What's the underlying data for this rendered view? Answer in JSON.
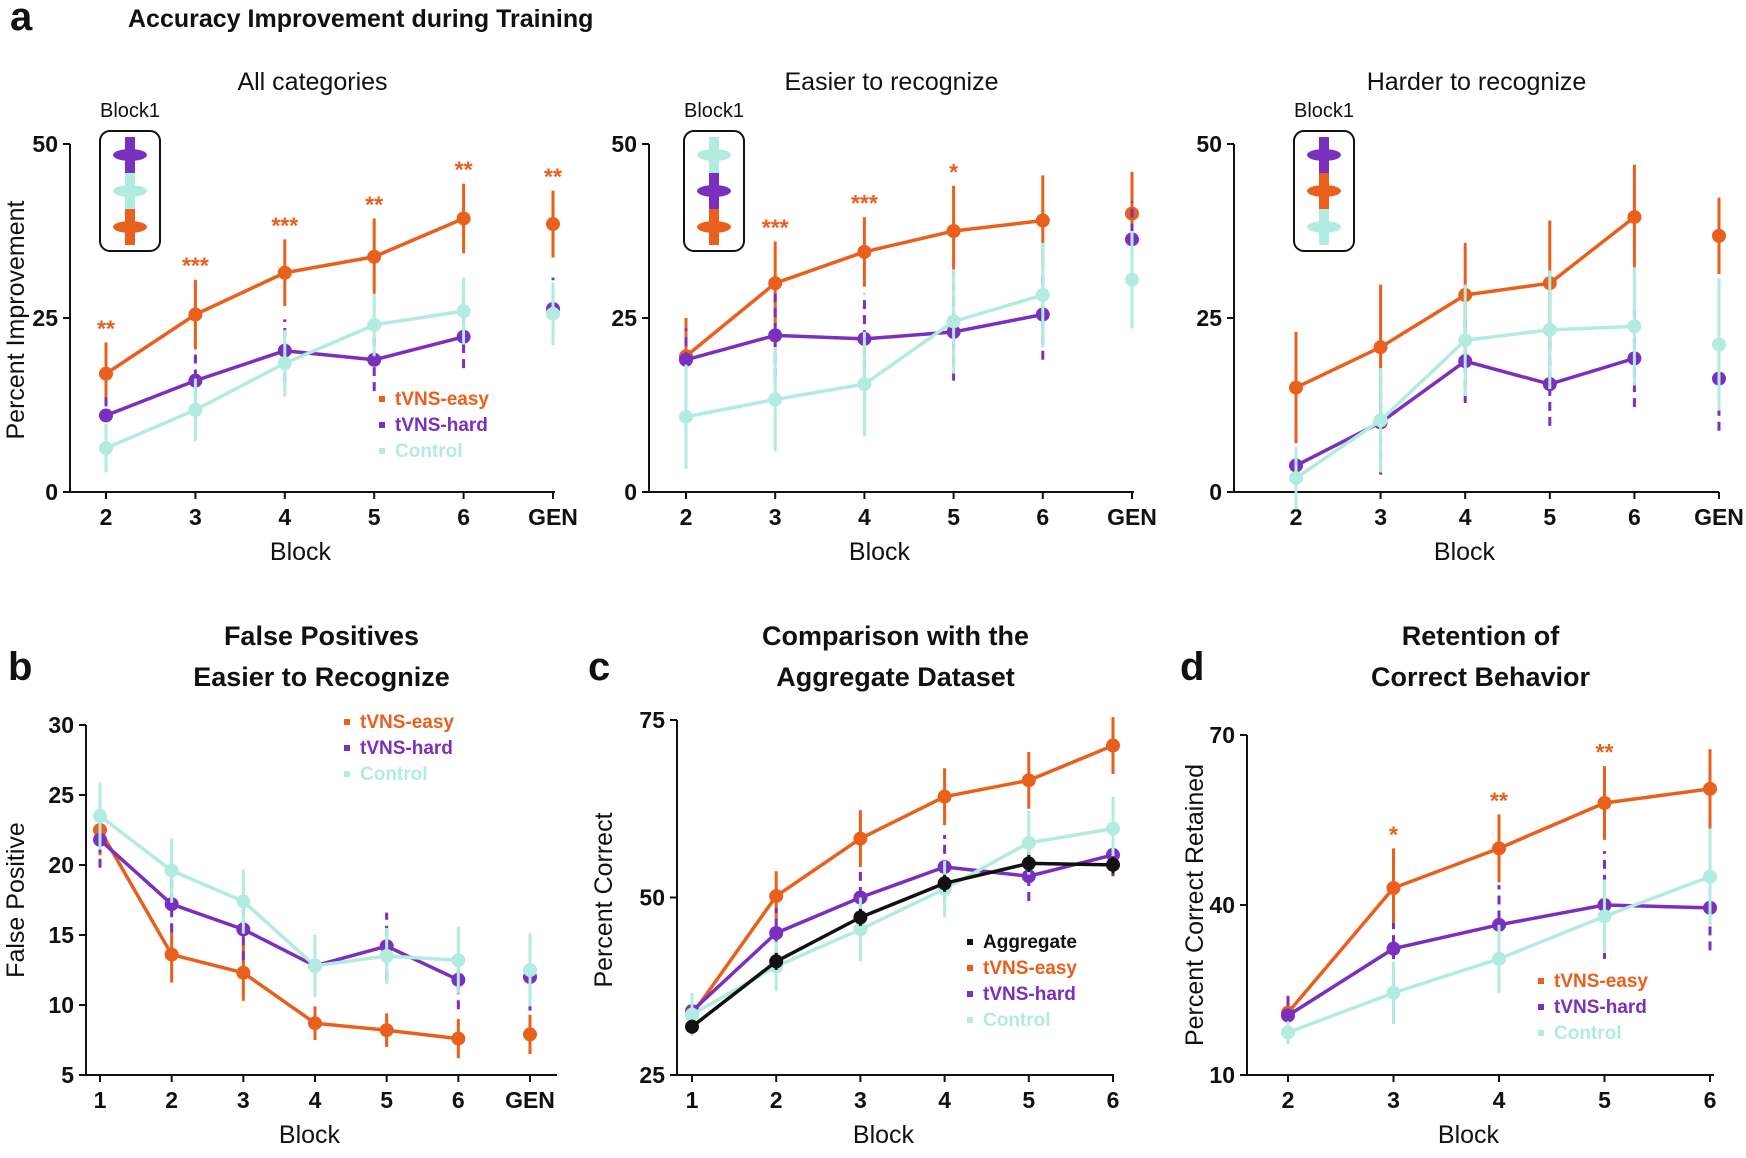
{
  "figure": {
    "section_a_letter": "a",
    "section_a_title": "Accuracy Improvement during Training",
    "section_b_letter": "b",
    "section_c_letter": "c",
    "section_d_letter": "d"
  },
  "colors": {
    "tvns_easy": "#E8601C",
    "tvns_hard": "#7B2FBE",
    "control": "#B2EBDF",
    "aggregate": "#111111"
  },
  "chart_data": [
    {
      "id": "a1",
      "type": "line",
      "title": "All categories",
      "xlabel": "Block",
      "ylabel": "Percent Improvement",
      "categories": [
        "2",
        "3",
        "4",
        "5",
        "6",
        "GEN"
      ],
      "yticks": [
        0,
        25,
        50
      ],
      "ylim": [
        0,
        50
      ],
      "inset_label": "Block1",
      "legend": [
        "tVNS-easy",
        "tVNS-hard",
        "Control"
      ],
      "series": [
        {
          "name": "tVNS-easy",
          "color_key": "tvns_easy",
          "values": [
            17,
            25.5,
            31.5,
            33.8,
            39.3,
            38.5
          ],
          "err": [
            4.5,
            5,
            4.8,
            5.5,
            5,
            4.8
          ]
        },
        {
          "name": "tVNS-hard",
          "color_key": "tvns_hard",
          "values": [
            11,
            16,
            20.3,
            19,
            22.3,
            26.3
          ],
          "err": [
            3,
            4,
            4.5,
            4.5,
            4.5,
            4.5
          ]
        },
        {
          "name": "Control",
          "color_key": "control",
          "values": [
            6.3,
            11.8,
            18.5,
            24,
            26,
            25.6
          ],
          "err": [
            3.5,
            4.5,
            4.8,
            4.5,
            4.8,
            4.5
          ]
        }
      ],
      "stars": [
        "**",
        "***",
        "***",
        "**",
        "**",
        "**"
      ]
    },
    {
      "id": "a2",
      "type": "line",
      "title": "Easier to recognize",
      "xlabel": "Block",
      "ylabel": "",
      "categories": [
        "2",
        "3",
        "4",
        "5",
        "6",
        "GEN"
      ],
      "yticks": [
        0,
        25,
        50
      ],
      "ylim": [
        0,
        50
      ],
      "inset_label": "Block1",
      "legend": [],
      "series": [
        {
          "name": "tVNS-easy",
          "color_key": "tvns_easy",
          "values": [
            19.5,
            30,
            34.5,
            37.5,
            39,
            40
          ],
          "err": [
            5.5,
            6,
            5,
            6.5,
            6.5,
            6
          ]
        },
        {
          "name": "tVNS-hard",
          "color_key": "tvns_hard",
          "values": [
            19,
            22.5,
            22,
            23,
            25.5,
            36.3
          ],
          "err": [
            4.5,
            6,
            6.5,
            7,
            6.5,
            5.5
          ]
        },
        {
          "name": "Control",
          "color_key": "control",
          "values": [
            10.8,
            13.3,
            15.5,
            24.5,
            28.3,
            30.5
          ],
          "err": [
            7.5,
            7.5,
            7.5,
            7.5,
            7.5,
            7
          ]
        }
      ],
      "stars": [
        "",
        "***",
        "***",
        "*",
        "",
        ""
      ]
    },
    {
      "id": "a3",
      "type": "line",
      "title": "Harder to recognize",
      "xlabel": "Block",
      "ylabel": "",
      "categories": [
        "2",
        "3",
        "4",
        "5",
        "6",
        "GEN"
      ],
      "yticks": [
        0,
        25,
        50
      ],
      "ylim": [
        0,
        50
      ],
      "inset_label": "Block1",
      "legend": [],
      "series": [
        {
          "name": "tVNS-easy",
          "color_key": "tvns_easy",
          "values": [
            15,
            20.8,
            28.3,
            30,
            39.5,
            36.8
          ],
          "err": [
            8,
            9,
            7.5,
            9,
            7.5,
            5.5
          ]
        },
        {
          "name": "tVNS-hard",
          "color_key": "tvns_hard",
          "values": [
            3.8,
            10,
            18.8,
            15.5,
            19.2,
            16.3
          ],
          "err": [
            3,
            7.5,
            6,
            6,
            7,
            7.5
          ]
        },
        {
          "name": "Control",
          "color_key": "control",
          "values": [
            2,
            10.3,
            21.8,
            23.3,
            23.8,
            21.2
          ],
          "err": [
            4.5,
            7.5,
            8,
            8.5,
            8.5,
            9.5
          ]
        }
      ],
      "stars": [
        "",
        "",
        "",
        "",
        "",
        ""
      ]
    },
    {
      "id": "b",
      "type": "line",
      "title_line1": "False Positives",
      "title_line2": "Easier to Recognize",
      "xlabel": "Block",
      "ylabel": "False Positive",
      "categories": [
        "1",
        "2",
        "3",
        "4",
        "5",
        "6",
        "GEN"
      ],
      "yticks": [
        5,
        10,
        15,
        20,
        25,
        30
      ],
      "ylim": [
        5,
        30
      ],
      "legend": [
        "tVNS-easy",
        "tVNS-hard",
        "Control"
      ],
      "series": [
        {
          "name": "tVNS-easy",
          "color_key": "tvns_easy",
          "values": [
            22.5,
            13.6,
            12.3,
            8.7,
            8.2,
            7.6,
            7.9
          ],
          "err": [
            1.8,
            2,
            2,
            1.2,
            1.2,
            1.4,
            1.4
          ]
        },
        {
          "name": "tVNS-hard",
          "color_key": "tvns_hard",
          "values": [
            21.8,
            17.2,
            15.4,
            12.8,
            14.2,
            11.8,
            12
          ],
          "err": [
            2,
            2,
            2.2,
            2.2,
            2.4,
            2.1,
            2.4
          ]
        },
        {
          "name": "Control",
          "color_key": "control",
          "values": [
            23.5,
            19.6,
            17.4,
            12.8,
            13.5,
            13.2,
            12.5
          ],
          "err": [
            2.4,
            2.3,
            2.3,
            2.2,
            2,
            2.4,
            2.6
          ]
        }
      ],
      "stars": [
        "",
        "",
        "",
        "",
        "",
        "",
        ""
      ]
    },
    {
      "id": "c",
      "type": "line",
      "title_line1": "Comparison with the",
      "title_line2": "Aggregate Dataset",
      "xlabel": "Block",
      "ylabel": "Percent Correct",
      "categories": [
        "1",
        "2",
        "3",
        "4",
        "5",
        "6"
      ],
      "yticks": [
        25,
        50,
        75
      ],
      "ylim": [
        25,
        75
      ],
      "legend": [
        "Aggregate",
        "tVNS-easy",
        "tVNS-hard",
        "Control"
      ],
      "series": [
        {
          "name": "tVNS-easy",
          "color_key": "tvns_easy",
          "values": [
            33.5,
            50.2,
            58.3,
            64.2,
            66.5,
            71.4
          ],
          "err": [
            2.5,
            3.5,
            4,
            4,
            4,
            4
          ]
        },
        {
          "name": "tVNS-hard",
          "color_key": "tvns_hard",
          "values": [
            34,
            45,
            50,
            54.3,
            53,
            56
          ],
          "err": [
            3,
            3.5,
            4,
            4.5,
            3.5,
            3
          ]
        },
        {
          "name": "Control",
          "color_key": "control",
          "values": [
            33.5,
            40.3,
            45.5,
            51.2,
            57.7,
            59.7
          ],
          "err": [
            3,
            3.5,
            4.5,
            4,
            4.5,
            4.5
          ]
        },
        {
          "name": "Aggregate",
          "color_key": "aggregate",
          "values": [
            31.8,
            41,
            47.2,
            52,
            54.8,
            54.6
          ],
          "err": [
            1,
            1.2,
            1.2,
            1.2,
            1.2,
            1.2
          ]
        }
      ],
      "stars": [
        "",
        "",
        "",
        "",
        "",
        ""
      ]
    },
    {
      "id": "d",
      "type": "line",
      "title_line1": "Retention of",
      "title_line2": "Correct Behavior",
      "xlabel": "Block",
      "ylabel": "Percent Correct Retained",
      "categories": [
        "2",
        "3",
        "4",
        "5",
        "6"
      ],
      "yticks": [
        10,
        40,
        70
      ],
      "ylim": [
        10,
        70
      ],
      "legend": [
        "tVNS-easy",
        "tVNS-hard",
        "Control"
      ],
      "series": [
        {
          "name": "tVNS-easy",
          "color_key": "tvns_easy",
          "values": [
            21,
            43,
            50,
            58,
            60.5
          ],
          "err": [
            3,
            7,
            6,
            6.5,
            7
          ]
        },
        {
          "name": "tVNS-hard",
          "color_key": "tvns_hard",
          "values": [
            20.5,
            32.3,
            36.5,
            40,
            39.5
          ],
          "err": [
            3.5,
            4.5,
            7,
            9.5,
            7.5
          ]
        },
        {
          "name": "Control",
          "color_key": "control",
          "values": [
            17.5,
            24.5,
            30.5,
            38,
            45
          ],
          "err": [
            2,
            5.5,
            6,
            6.5,
            8.5
          ]
        }
      ],
      "stars": [
        "",
        "*",
        "**",
        "**",
        ""
      ]
    }
  ]
}
